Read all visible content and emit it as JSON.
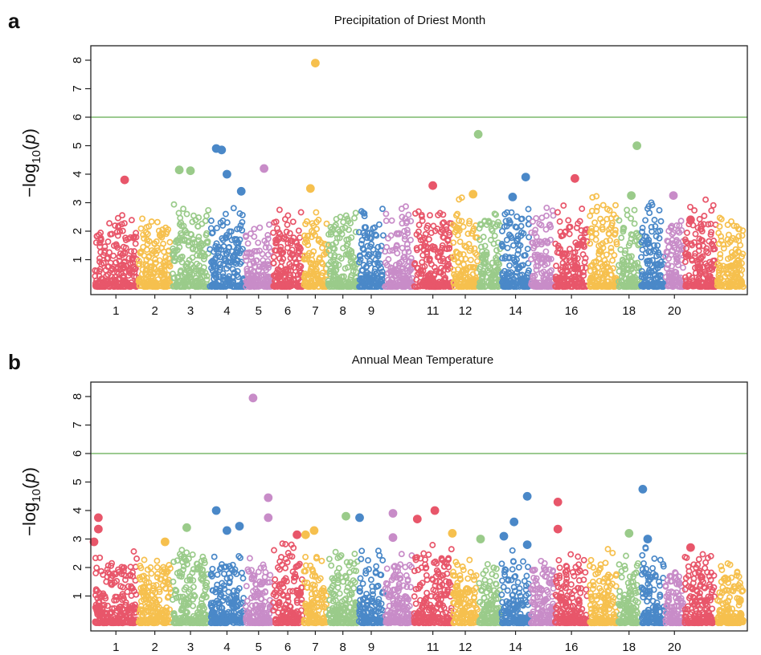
{
  "chart_data": [
    {
      "panel_label": "a",
      "type": "scatter",
      "title": "Precipitation of Driest Month",
      "ylabel": {
        "prefix": "−log",
        "sub": "10",
        "open": "(",
        "var": "p",
        "close": ")"
      },
      "ylim": [
        0,
        8.3
      ],
      "yticks": [
        1,
        2,
        3,
        4,
        5,
        6,
        7,
        8
      ],
      "threshold": 6,
      "threshold_color": "#7bb86b",
      "chromosomes": 22,
      "xtick_chromosomes": [
        1,
        2,
        3,
        4,
        5,
        6,
        7,
        8,
        9,
        11,
        12,
        14,
        16,
        18,
        20
      ],
      "xtick_labels": [
        "1",
        "2",
        "3",
        "4",
        "5",
        "6",
        "7",
        "8",
        "9",
        "11",
        "12",
        "14",
        "16",
        "18",
        "20"
      ],
      "chromosome_peak_values": [
        2.7,
        2.7,
        3.1,
        2.9,
        2.4,
        3.0,
        2.9,
        3.0,
        3.1,
        2.9,
        2.9,
        3.2,
        3.0,
        2.8,
        3.0,
        2.9,
        3.3,
        2.9,
        3.3,
        2.9,
        3.2,
        2.5
      ],
      "highlighted_points": [
        {
          "chr": 1.7,
          "y": 3.8
        },
        {
          "chr": 3.2,
          "y": 4.15
        },
        {
          "chr": 3.5,
          "y": 4.12
        },
        {
          "chr": 4.2,
          "y": 4.9
        },
        {
          "chr": 4.35,
          "y": 4.85
        },
        {
          "chr": 4.5,
          "y": 4.0
        },
        {
          "chr": 4.9,
          "y": 3.4
        },
        {
          "chr": 5.7,
          "y": 4.2
        },
        {
          "chr": 7.5,
          "y": 7.9
        },
        {
          "chr": 7.3,
          "y": 3.5
        },
        {
          "chr": 11.5,
          "y": 3.6
        },
        {
          "chr": 13.0,
          "y": 5.4
        },
        {
          "chr": 12.8,
          "y": 3.3
        },
        {
          "chr": 14.4,
          "y": 3.2
        },
        {
          "chr": 14.85,
          "y": 3.9
        },
        {
          "chr": 16.6,
          "y": 3.85
        },
        {
          "chr": 18.85,
          "y": 5.0
        },
        {
          "chr": 18.6,
          "y": 3.25
        },
        {
          "chr": 20.45,
          "y": 3.25
        },
        {
          "chr": 21.2,
          "y": 2.4
        }
      ]
    },
    {
      "panel_label": "b",
      "type": "scatter",
      "title": "Annual Mean Temperature",
      "ylabel": {
        "prefix": "−log",
        "sub": "10",
        "open": "(",
        "var": "p",
        "close": ")"
      },
      "ylim": [
        0,
        8.3
      ],
      "yticks": [
        1,
        2,
        3,
        4,
        5,
        6,
        7,
        8
      ],
      "threshold": 6,
      "threshold_color": "#7bb86b",
      "chromosomes": 22,
      "xtick_chromosomes": [
        1,
        2,
        3,
        4,
        5,
        6,
        7,
        8,
        9,
        11,
        12,
        14,
        16,
        18,
        20
      ],
      "xtick_labels": [
        "1",
        "2",
        "3",
        "4",
        "5",
        "6",
        "7",
        "8",
        "9",
        "11",
        "12",
        "14",
        "16",
        "18",
        "20"
      ],
      "chromosome_peak_values": [
        2.6,
        2.6,
        2.9,
        2.7,
        2.4,
        3.1,
        2.8,
        2.9,
        2.6,
        2.8,
        3.0,
        2.5,
        2.4,
        2.6,
        2.7,
        2.5,
        2.7,
        2.6,
        2.7,
        2.3,
        2.5,
        2.3
      ],
      "highlighted_points": [
        {
          "chr": 1.1,
          "y": 3.75
        },
        {
          "chr": 1.1,
          "y": 3.35
        },
        {
          "chr": 1.0,
          "y": 2.9
        },
        {
          "chr": 2.8,
          "y": 2.9
        },
        {
          "chr": 3.4,
          "y": 3.4
        },
        {
          "chr": 4.2,
          "y": 4.0
        },
        {
          "chr": 4.5,
          "y": 3.3
        },
        {
          "chr": 4.85,
          "y": 3.45
        },
        {
          "chr": 5.3,
          "y": 7.95
        },
        {
          "chr": 5.85,
          "y": 4.45
        },
        {
          "chr": 5.85,
          "y": 3.75
        },
        {
          "chr": 6.8,
          "y": 3.15
        },
        {
          "chr": 7.1,
          "y": 3.15
        },
        {
          "chr": 7.45,
          "y": 3.3
        },
        {
          "chr": 8.6,
          "y": 3.8
        },
        {
          "chr": 9.05,
          "y": 3.75
        },
        {
          "chr": 10.3,
          "y": 3.9
        },
        {
          "chr": 10.3,
          "y": 3.05
        },
        {
          "chr": 11.1,
          "y": 3.7
        },
        {
          "chr": 11.55,
          "y": 4.0
        },
        {
          "chr": 12.0,
          "y": 3.2
        },
        {
          "chr": 13.1,
          "y": 3.0
        },
        {
          "chr": 14.1,
          "y": 3.1
        },
        {
          "chr": 14.45,
          "y": 3.6
        },
        {
          "chr": 14.9,
          "y": 4.5
        },
        {
          "chr": 14.9,
          "y": 2.8
        },
        {
          "chr": 16.1,
          "y": 4.3
        },
        {
          "chr": 16.1,
          "y": 3.35
        },
        {
          "chr": 18.5,
          "y": 3.2
        },
        {
          "chr": 19.1,
          "y": 4.75
        },
        {
          "chr": 19.3,
          "y": 3.0
        },
        {
          "chr": 21.2,
          "y": 2.7
        }
      ]
    }
  ],
  "chromosome_colors": [
    "#e8566a",
    "#f6c04e",
    "#9acb8a",
    "#4a88c8",
    "#c88cc8"
  ],
  "axis_color": "#222222"
}
